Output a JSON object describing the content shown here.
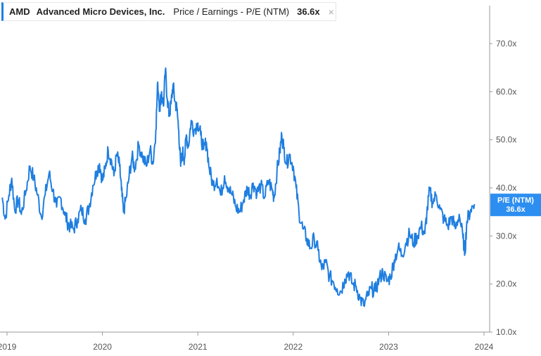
{
  "legend": {
    "ticker": "AMD",
    "company": "Advanced Micro Devices, Inc.",
    "metric": "Price / Earnings - P/E (NTM)",
    "value": "36.6x",
    "close_glyph": "×",
    "close_icon": "close-icon"
  },
  "colors": {
    "line": "#1f7ee0",
    "badge": "#2c8ef0",
    "axis": "#9a9a9a"
  },
  "chart_data": {
    "type": "line",
    "title": "AMD Advanced Micro Devices, Inc. Price / Earnings - P/E (NTM)",
    "xlabel": "",
    "ylabel": "",
    "ylim": [
      10,
      76
    ],
    "xlim": [
      2018.94,
      2024.08
    ],
    "y_ticks": [
      70,
      60,
      50,
      40,
      30,
      20,
      10
    ],
    "y_tick_labels": [
      "70.0x",
      "60.0x",
      "50.0x",
      "40.0x",
      "30.0x",
      "20.0x",
      "10.0x"
    ],
    "x_ticks": [
      2019,
      2020,
      2021,
      2022,
      2023,
      2024
    ],
    "x_tick_labels": [
      "2019",
      "2020",
      "2021",
      "2022",
      "2023",
      "2024"
    ],
    "current_label_line1": "P/E (NTM)",
    "current_label_line2": "36.6x",
    "current_value": 36.6,
    "series": [
      {
        "name": "P/E (NTM)",
        "points": [
          [
            2018.95,
            38.0
          ],
          [
            2018.98,
            33.5
          ],
          [
            2019.02,
            38.5
          ],
          [
            2019.05,
            42.0
          ],
          [
            2019.08,
            35.5
          ],
          [
            2019.12,
            37.5
          ],
          [
            2019.15,
            34.5
          ],
          [
            2019.2,
            39.5
          ],
          [
            2019.24,
            44.5
          ],
          [
            2019.28,
            42.0
          ],
          [
            2019.32,
            38.5
          ],
          [
            2019.36,
            34.0
          ],
          [
            2019.4,
            38.5
          ],
          [
            2019.44,
            43.0
          ],
          [
            2019.48,
            39.5
          ],
          [
            2019.52,
            36.0
          ],
          [
            2019.56,
            38.0
          ],
          [
            2019.6,
            35.0
          ],
          [
            2019.63,
            33.0
          ],
          [
            2019.66,
            32.0
          ],
          [
            2019.7,
            31.5
          ],
          [
            2019.74,
            33.5
          ],
          [
            2019.78,
            35.5
          ],
          [
            2019.82,
            33.5
          ],
          [
            2019.86,
            36.0
          ],
          [
            2019.9,
            40.5
          ],
          [
            2019.94,
            43.5
          ],
          [
            2019.97,
            45.0
          ],
          [
            2020.0,
            41.5
          ],
          [
            2020.03,
            44.0
          ],
          [
            2020.06,
            48.0
          ],
          [
            2020.09,
            46.0
          ],
          [
            2020.12,
            42.5
          ],
          [
            2020.15,
            47.0
          ],
          [
            2020.18,
            44.5
          ],
          [
            2020.2,
            39.5
          ],
          [
            2020.22,
            35.0
          ],
          [
            2020.25,
            38.0
          ],
          [
            2020.28,
            42.5
          ],
          [
            2020.31,
            46.5
          ],
          [
            2020.34,
            44.0
          ],
          [
            2020.38,
            49.0
          ],
          [
            2020.42,
            46.5
          ],
          [
            2020.46,
            44.5
          ],
          [
            2020.5,
            48.0
          ],
          [
            2020.53,
            45.0
          ],
          [
            2020.56,
            52.0
          ],
          [
            2020.58,
            62.0
          ],
          [
            2020.6,
            56.5
          ],
          [
            2020.62,
            60.0
          ],
          [
            2020.64,
            57.0
          ],
          [
            2020.66,
            64.5
          ],
          [
            2020.68,
            58.5
          ],
          [
            2020.7,
            55.0
          ],
          [
            2020.72,
            57.5
          ],
          [
            2020.74,
            61.5
          ],
          [
            2020.76,
            58.0
          ],
          [
            2020.78,
            56.5
          ],
          [
            2020.8,
            52.0
          ],
          [
            2020.82,
            44.5
          ],
          [
            2020.84,
            47.5
          ],
          [
            2020.86,
            46.0
          ],
          [
            2020.88,
            51.0
          ],
          [
            2020.9,
            48.5
          ],
          [
            2020.93,
            54.0
          ],
          [
            2020.96,
            52.0
          ],
          [
            2021.0,
            53.5
          ],
          [
            2021.03,
            51.0
          ],
          [
            2021.06,
            48.0
          ],
          [
            2021.09,
            49.5
          ],
          [
            2021.12,
            44.0
          ],
          [
            2021.16,
            40.5
          ],
          [
            2021.2,
            42.0
          ],
          [
            2021.24,
            38.5
          ],
          [
            2021.28,
            42.5
          ],
          [
            2021.32,
            40.0
          ],
          [
            2021.36,
            38.5
          ],
          [
            2021.4,
            36.0
          ],
          [
            2021.44,
            35.0
          ],
          [
            2021.48,
            37.5
          ],
          [
            2021.52,
            40.0
          ],
          [
            2021.55,
            38.5
          ],
          [
            2021.58,
            41.0
          ],
          [
            2021.62,
            39.0
          ],
          [
            2021.66,
            40.5
          ],
          [
            2021.7,
            38.0
          ],
          [
            2021.74,
            41.5
          ],
          [
            2021.78,
            39.5
          ],
          [
            2021.8,
            38.0
          ],
          [
            2021.83,
            43.5
          ],
          [
            2021.86,
            47.5
          ],
          [
            2021.88,
            51.0
          ],
          [
            2021.9,
            48.5
          ],
          [
            2021.93,
            45.0
          ],
          [
            2021.96,
            47.0
          ],
          [
            2022.0,
            44.5
          ],
          [
            2022.03,
            40.0
          ],
          [
            2022.06,
            35.0
          ],
          [
            2022.1,
            31.5
          ],
          [
            2022.14,
            29.5
          ],
          [
            2022.18,
            27.5
          ],
          [
            2022.22,
            29.5
          ],
          [
            2022.26,
            27.0
          ],
          [
            2022.3,
            23.0
          ],
          [
            2022.34,
            24.5
          ],
          [
            2022.38,
            21.5
          ],
          [
            2022.42,
            20.5
          ],
          [
            2022.46,
            19.0
          ],
          [
            2022.5,
            18.5
          ],
          [
            2022.54,
            21.0
          ],
          [
            2022.58,
            22.5
          ],
          [
            2022.62,
            20.0
          ],
          [
            2022.66,
            19.5
          ],
          [
            2022.7,
            17.0
          ],
          [
            2022.74,
            15.5
          ],
          [
            2022.78,
            17.5
          ],
          [
            2022.82,
            19.0
          ],
          [
            2022.86,
            18.5
          ],
          [
            2022.9,
            21.0
          ],
          [
            2022.94,
            22.5
          ],
          [
            2022.98,
            20.5
          ],
          [
            2023.02,
            21.5
          ],
          [
            2023.06,
            25.0
          ],
          [
            2023.1,
            27.5
          ],
          [
            2023.14,
            26.0
          ],
          [
            2023.18,
            28.5
          ],
          [
            2023.22,
            30.5
          ],
          [
            2023.26,
            28.5
          ],
          [
            2023.3,
            30.0
          ],
          [
            2023.34,
            32.0
          ],
          [
            2023.38,
            30.5
          ],
          [
            2023.4,
            34.5
          ],
          [
            2023.43,
            39.5
          ],
          [
            2023.46,
            37.0
          ],
          [
            2023.5,
            38.5
          ],
          [
            2023.54,
            35.5
          ],
          [
            2023.58,
            33.5
          ],
          [
            2023.62,
            32.0
          ],
          [
            2023.66,
            34.0
          ],
          [
            2023.7,
            31.5
          ],
          [
            2023.74,
            34.5
          ],
          [
            2023.78,
            29.5
          ],
          [
            2023.8,
            26.5
          ],
          [
            2023.82,
            33.0
          ],
          [
            2023.86,
            35.5
          ],
          [
            2023.9,
            36.6
          ]
        ]
      }
    ]
  }
}
